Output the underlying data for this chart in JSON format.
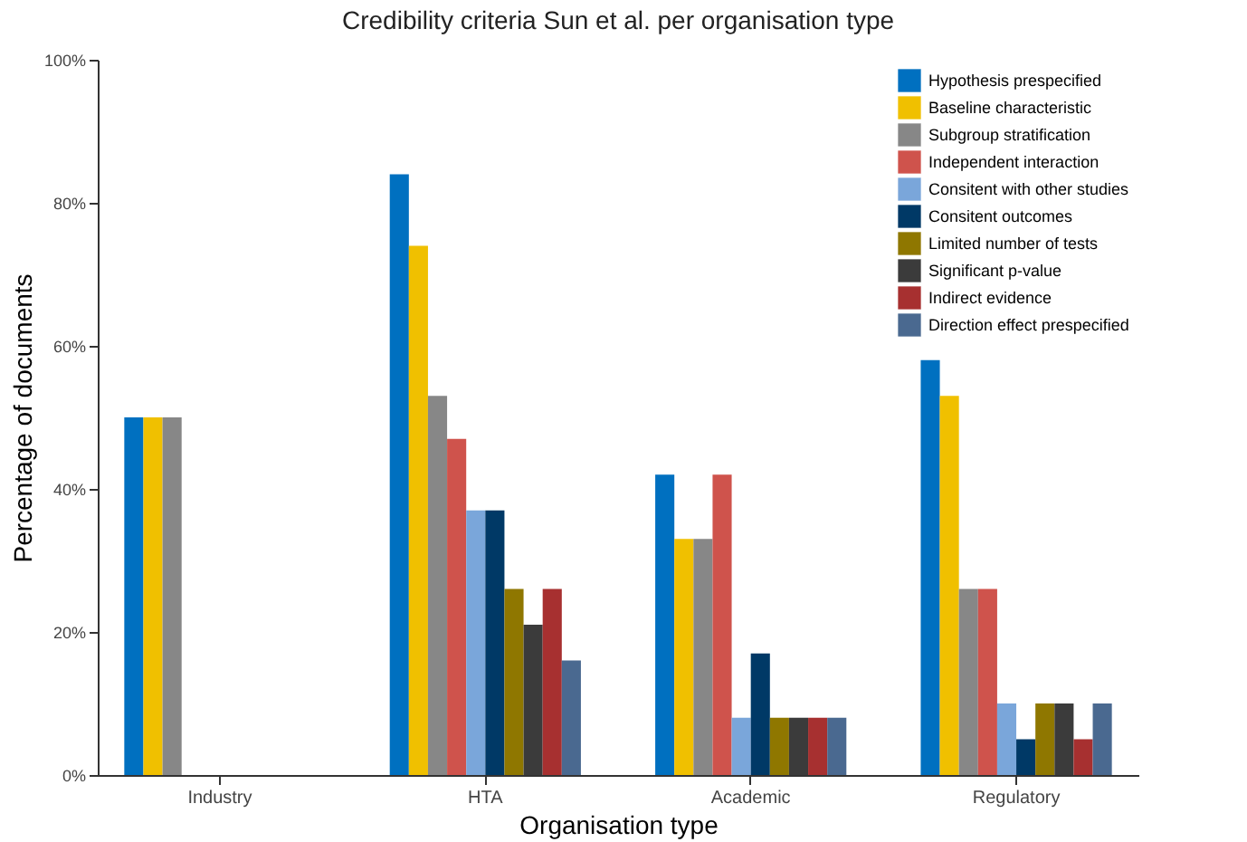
{
  "chart_data": {
    "type": "bar",
    "title": "Credibility criteria Sun et al. per organisation type",
    "xlabel": "Organisation type",
    "ylabel": "Percentage of documents",
    "categories": [
      "Industry",
      "HTA",
      "Academic",
      "Regulatory"
    ],
    "series": [
      {
        "name": "Hypothesis prespecified",
        "color": "#0070c0",
        "values": [
          50,
          84,
          42,
          58
        ]
      },
      {
        "name": "Baseline characteristic",
        "color": "#f0c000",
        "values": [
          50,
          74,
          33,
          53
        ]
      },
      {
        "name": "Subgroup stratification",
        "color": "#878787",
        "values": [
          50,
          53,
          33,
          26
        ]
      },
      {
        "name": "Independent interaction",
        "color": "#cf534c",
        "values": [
          0,
          47,
          42,
          26
        ]
      },
      {
        "name": "Consitent with other studies",
        "color": "#7aa6da",
        "values": [
          0,
          37,
          8,
          10
        ]
      },
      {
        "name": "Consitent outcomes",
        "color": "#003966",
        "values": [
          0,
          37,
          17,
          5
        ]
      },
      {
        "name": "Limited number of tests",
        "color": "#8f7700",
        "values": [
          0,
          26,
          8,
          10
        ]
      },
      {
        "name": "Significant p-value",
        "color": "#3b3b3b",
        "values": [
          0,
          21,
          8,
          10
        ]
      },
      {
        "name": "Indirect evidence",
        "color": "#a73030",
        "values": [
          0,
          26,
          8,
          5
        ]
      },
      {
        "name": "Direction effect prespecified",
        "color": "#4a6990",
        "values": [
          0,
          16,
          8,
          10
        ]
      }
    ],
    "ylim": [
      0,
      100
    ],
    "yticks": [
      {
        "value": 0,
        "label": "0%"
      },
      {
        "value": 20,
        "label": "20%"
      },
      {
        "value": 40,
        "label": "40%"
      },
      {
        "value": 60,
        "label": "60%"
      },
      {
        "value": 80,
        "label": "80%"
      },
      {
        "value": 100,
        "label": "100%"
      }
    ],
    "grid": false,
    "legend": "top right"
  }
}
